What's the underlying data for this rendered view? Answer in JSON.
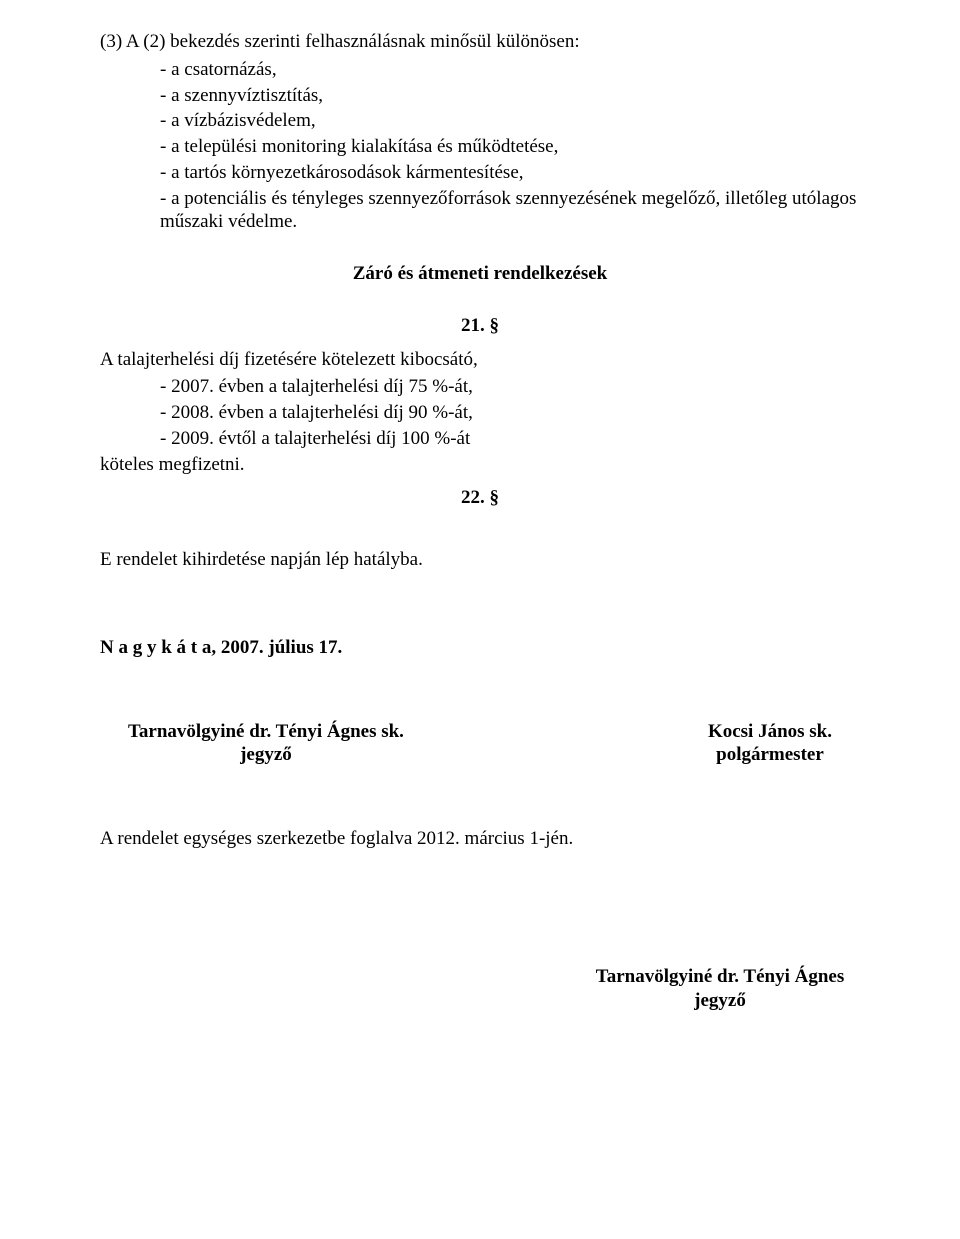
{
  "p1": "(3) A (2) bekezdés szerinti felhasználásnak minősül különösen:",
  "items1": [
    "- a csatornázás,",
    "- a szennyvíztisztítás,",
    "- a vízbázisvédelem,",
    "- a települési monitoring kialakítása és működtetése,",
    "- a tartós környezetkárosodások kármentesítése,",
    "- a potenciális és tényleges szennyezőforrások szennyezésének megelőző, illetőleg utólagos műszaki védelme."
  ],
  "heading": "Záró és átmeneti rendelkezések",
  "sec21": "21. §",
  "p2": "A talajterhelési díj fizetésére kötelezett kibocsátó,",
  "items2": [
    "- 2007. évben a talajterhelési díj 75 %-át,",
    "- 2008. évben a talajterhelési díj 90 %-át,",
    "- 2009. évtől a talajterhelési díj 100 %-át"
  ],
  "p3": "köteles megfizetni.",
  "sec22": "22. §",
  "p4": "E rendelet kihirdetése napján lép hatályba.",
  "place_date": "N a g y k á t a, 2007. július 17.",
  "sig_left_name": "Tarnavölgyiné dr. Tényi Ágnes sk.",
  "sig_left_title": "jegyző",
  "sig_right_name": "Kocsi János sk.",
  "sig_right_title": "polgármester",
  "p5": "A rendelet egységes szerkezetbe foglalva 2012. március 1-jén.",
  "bottom_sig_name": "Tarnavölgyiné dr. Tényi Ágnes",
  "bottom_sig_title": "jegyző"
}
